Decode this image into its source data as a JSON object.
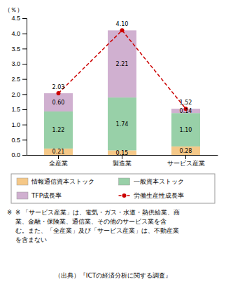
{
  "chart_data": {
    "type": "bar",
    "stacked": true,
    "data_labels": true,
    "ylabel": "（％）",
    "categories": [
      "全産業",
      "製造業",
      "サービス産業"
    ],
    "series": [
      {
        "name": "情報通信資本ストック",
        "color": "#f5c888",
        "values": [
          0.21,
          0.15,
          0.28
        ],
        "value_labels": [
          "0.21",
          "0.15",
          "0.28"
        ]
      },
      {
        "name": "一般資本ストック",
        "color": "#98d0a8",
        "values": [
          1.22,
          1.74,
          1.1
        ],
        "value_labels": [
          "1.22",
          "1.74",
          "1.10"
        ]
      },
      {
        "name": "TFP成長率",
        "color": "#d0b0d0",
        "values": [
          0.6,
          2.21,
          0.14
        ],
        "value_labels": [
          "0.60",
          "2.21",
          "0.14"
        ]
      },
      {
        "name": "労働生産性成長率",
        "type": "line",
        "color": "#cc0000",
        "marker": "circle",
        "line_style": "dashed",
        "values": [
          2.03,
          4.1,
          1.52
        ],
        "value_labels": [
          "2.03",
          "4.10",
          "1.52"
        ]
      }
    ],
    "ylim": [
      0,
      4.5
    ],
    "yticks": [
      {
        "value": 0.0,
        "label": "0.0"
      },
      0.5,
      {
        "value": 1.0,
        "label": "1.0"
      },
      1.5,
      {
        "value": 2.0,
        "label": "2.0"
      },
      2.5,
      {
        "value": 3.0,
        "label": "3.0"
      },
      3.5,
      {
        "value": 4.0,
        "label": "4.0"
      },
      4.5
    ],
    "annotations": [
      "※",
      "※ 「サービス産業」は、電気・ガス・水道・熱供給業、商",
      "業、金融・保険業、通信業、その他のサービス業を含",
      "む。また、「全産業」及び「サービス産業」は、不動産業",
      "を含まない",
      "（出典）『ICTの経済分析に関する調査』"
    ]
  }
}
